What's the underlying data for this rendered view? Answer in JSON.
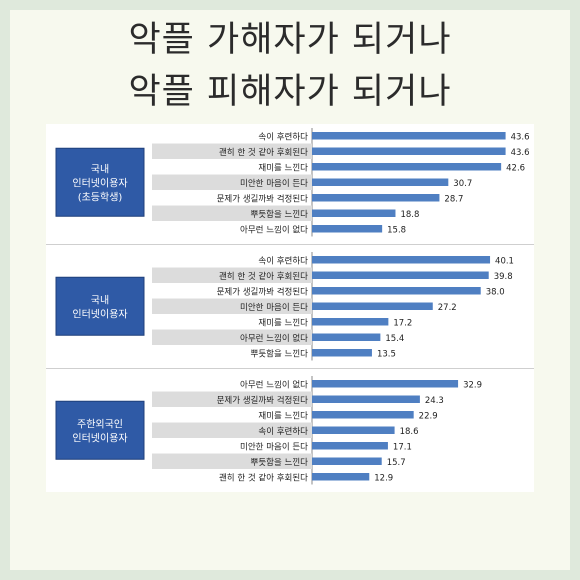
{
  "header": {
    "title_line1": "악플 가해자가 되거나",
    "title_line2": "악플 피해자가 되거나"
  },
  "colors": {
    "bar": "#4f7fc2",
    "group_box_fill": "#2f5aa6",
    "stripe": "#dcdcdc",
    "page_bg": "#dfe9dc",
    "card_bg": "#f7f9ee"
  },
  "chart_data": [
    {
      "type": "bar",
      "orientation": "horizontal",
      "group": [
        "국내",
        "인터넷이용자",
        "(초등학생)"
      ],
      "categories": [
        "속이 후련하다",
        "괜히 한 것 같아 후회된다",
        "재미를 느낀다",
        "미안한 마음이 든다",
        "문제가 생길까봐 걱정된다",
        "뿌듯함을 느낀다",
        "아무런 느낌이 없다"
      ],
      "values": [
        43.6,
        43.6,
        42.6,
        30.7,
        28.7,
        18.8,
        15.8
      ],
      "xlim": [
        0,
        50
      ]
    },
    {
      "type": "bar",
      "orientation": "horizontal",
      "group": [
        "국내",
        "인터넷이용자"
      ],
      "categories": [
        "속이 후련하다",
        "괜히 한 것 같아 후회된다",
        "문제가 생길까봐 걱정된다",
        "미안한 마음이 든다",
        "재미를 느낀다",
        "아무런 느낌이 없다",
        "뿌듯함을 느낀다"
      ],
      "values": [
        40.1,
        39.8,
        38.0,
        27.2,
        17.2,
        15.4,
        13.5
      ],
      "xlim": [
        0,
        50
      ]
    },
    {
      "type": "bar",
      "orientation": "horizontal",
      "group": [
        "주한외국인",
        "인터넷이용자"
      ],
      "categories": [
        "아무런 느낌이 없다",
        "문제가 생길까봐 걱정된다",
        "재미를 느낀다",
        "속이 후련하다",
        "미안한 마음이 든다",
        "뿌듯함을 느낀다",
        "괜히 한 것 같아 후회된다"
      ],
      "values": [
        32.9,
        24.3,
        22.9,
        18.6,
        17.1,
        15.7,
        12.9
      ],
      "xlim": [
        0,
        50
      ]
    }
  ]
}
